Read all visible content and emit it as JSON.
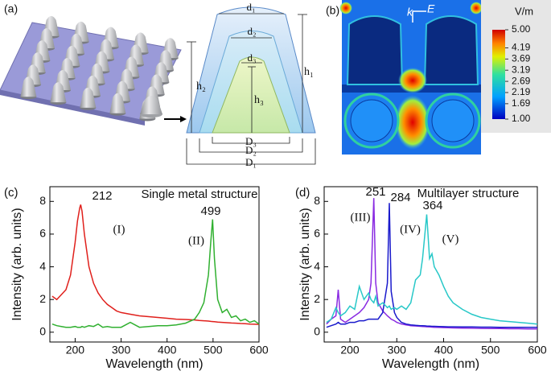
{
  "panel_a": {
    "label": "(a)",
    "dims": [
      "d₁",
      "d₂",
      "d₃",
      "h₂",
      "h₃",
      "h₁",
      "D₃",
      "D₂",
      "D₁"
    ]
  },
  "panel_b": {
    "label": "(b)",
    "k": "k",
    "E": "E",
    "colorbar": {
      "title": "V/m",
      "lim": [
        1,
        5
      ],
      "ticks": [
        {
          "value": 5,
          "label": "5.00"
        },
        4.19,
        3.69,
        3.19,
        2.69,
        2.19,
        1.69,
        {
          "value": 1,
          "label": "1.00"
        }
      ]
    }
  },
  "chart_data": [
    {
      "type": "line",
      "panel_label": "(c)",
      "title": "Single metal structure",
      "x_label": "Wavelength (nm)",
      "y_label": "Intensity (arb. units)",
      "x": [
        150,
        160,
        170,
        180,
        190,
        200,
        205,
        210,
        212,
        215,
        220,
        230,
        240,
        250,
        260,
        270,
        280,
        290,
        300,
        320,
        340,
        360,
        380,
        400,
        420,
        440,
        460,
        470,
        480,
        490,
        495,
        499,
        503,
        510,
        520,
        530,
        540,
        550,
        560,
        570,
        580,
        590,
        600
      ],
      "xlim": [
        145,
        600
      ],
      "xticks": [
        200,
        300,
        400,
        500,
        600
      ],
      "ylim": [
        -0.6,
        8.9
      ],
      "yticks": [
        0,
        2,
        4,
        6,
        8
      ],
      "series": [
        {
          "name": "(I)",
          "color": "#e0201c",
          "values": [
            2.2,
            2.0,
            2.3,
            2.6,
            3.5,
            5.5,
            6.8,
            7.6,
            7.8,
            7.4,
            6.0,
            4.0,
            3.0,
            2.4,
            2.0,
            1.7,
            1.5,
            1.3,
            1.2,
            1.1,
            1.0,
            0.95,
            0.9,
            0.85,
            0.8,
            0.78,
            0.75,
            0.72,
            0.7,
            0.68,
            0.66,
            0.65,
            0.64,
            0.62,
            0.6,
            0.58,
            0.56,
            0.55,
            0.53,
            0.52,
            0.5,
            0.49,
            0.48
          ]
        },
        {
          "name": "(II)",
          "color": "#30b030",
          "values": [
            0.5,
            0.4,
            0.35,
            0.3,
            0.3,
            0.35,
            0.3,
            0.3,
            0.3,
            0.35,
            0.3,
            0.4,
            0.35,
            0.5,
            0.3,
            0.35,
            0.3,
            0.3,
            0.3,
            0.6,
            0.3,
            0.35,
            0.4,
            0.4,
            0.45,
            0.55,
            0.8,
            1.2,
            1.8,
            3.5,
            5.5,
            6.9,
            4.5,
            2.0,
            1.2,
            1.4,
            0.9,
            1.0,
            0.7,
            0.8,
            0.6,
            0.7,
            0.5
          ]
        }
      ],
      "annotations": [
        "212",
        "499"
      ]
    },
    {
      "type": "line",
      "panel_label": "(d)",
      "title": "Multilayer structure",
      "x_label": "Wavelength (nm)",
      "y_label": "Intensity (arb. units)",
      "x": [
        150,
        160,
        170,
        175,
        180,
        190,
        200,
        210,
        220,
        230,
        240,
        245,
        251,
        255,
        260,
        270,
        280,
        284,
        288,
        295,
        300,
        310,
        320,
        330,
        340,
        350,
        355,
        360,
        364,
        370,
        375,
        380,
        390,
        400,
        410,
        420,
        440,
        460,
        480,
        500,
        520,
        540,
        560,
        580,
        600
      ],
      "xlim": [
        145,
        600
      ],
      "xticks": [
        200,
        300,
        400,
        500,
        600
      ],
      "ylim": [
        -0.6,
        8.9
      ],
      "yticks": [
        0,
        2,
        4,
        6,
        8
      ],
      "series": [
        {
          "name": "(III)",
          "color": "#8a2be2",
          "values": [
            0.5,
            0.8,
            1.0,
            2.6,
            0.8,
            0.6,
            0.8,
            1.0,
            1.2,
            1.5,
            2.0,
            3.0,
            8.2,
            3.0,
            1.8,
            1.3,
            1.0,
            0.9,
            0.8,
            0.7,
            0.6,
            0.5,
            0.45,
            0.4,
            0.38,
            0.36,
            0.35,
            0.34,
            0.33,
            0.32,
            0.31,
            0.3,
            0.29,
            0.28,
            0.27,
            0.26,
            0.25,
            0.24,
            0.23,
            0.22,
            0.22,
            0.21,
            0.21,
            0.2,
            0.2
          ]
        },
        {
          "name": "(IV)",
          "color": "#1a1acc",
          "values": [
            0.3,
            0.4,
            0.5,
            0.6,
            0.5,
            0.5,
            0.6,
            0.6,
            0.7,
            0.7,
            0.8,
            0.8,
            0.8,
            0.8,
            0.8,
            1.2,
            3.0,
            7.9,
            2.5,
            1.2,
            0.9,
            0.6,
            0.5,
            0.45,
            0.42,
            0.4,
            0.4,
            0.39,
            0.38,
            0.37,
            0.36,
            0.36,
            0.35,
            0.34,
            0.33,
            0.33,
            0.32,
            0.32,
            0.31,
            0.31,
            0.3,
            0.3,
            0.3,
            0.3,
            0.3
          ]
        },
        {
          "name": "(V)",
          "color": "#28c8c8",
          "values": [
            0.6,
            0.8,
            1.5,
            1.2,
            1.0,
            1.2,
            1.6,
            1.4,
            2.8,
            2.0,
            2.4,
            2.0,
            1.8,
            2.2,
            1.6,
            1.8,
            1.5,
            1.6,
            1.4,
            1.5,
            1.4,
            1.6,
            1.4,
            1.8,
            3.2,
            3.5,
            4.5,
            6.0,
            7.2,
            4.5,
            4.8,
            4.0,
            3.5,
            2.8,
            2.2,
            1.8,
            1.4,
            1.1,
            0.9,
            0.8,
            0.7,
            0.65,
            0.6,
            0.55,
            0.5
          ]
        }
      ],
      "annotations": [
        "251",
        "284",
        "364"
      ]
    }
  ]
}
